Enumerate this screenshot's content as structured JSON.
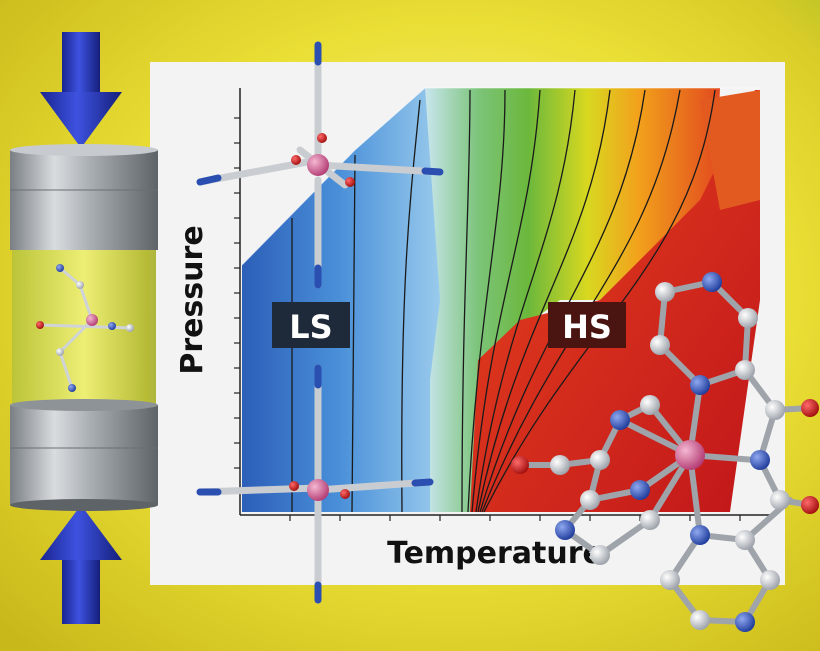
{
  "axes": {
    "x_label": "Temperature",
    "y_label": "Pressure"
  },
  "regions": {
    "low_spin": "LS",
    "high_spin": "HS"
  },
  "colors": {
    "background_yellow": "#e6dc2a",
    "panel": "#f4f4f4",
    "ls_blue": "#2f6fc4",
    "transition_green": "#8cc63f",
    "hs_red": "#d42a1e",
    "arrow_blue": "#2234b8",
    "label_box": "#1e2a3a",
    "hs_label_box": "#4a1410",
    "atom_nitrogen": "#2a4fb0",
    "atom_carbon": "#c8ccd2",
    "atom_oxygen": "#c01818",
    "atom_metal": "#d65a8a"
  },
  "icons": {
    "top_arrow": "down-arrow-icon",
    "bottom_arrow": "up-arrow-icon",
    "pressure_cell": "cylinder-icon"
  }
}
